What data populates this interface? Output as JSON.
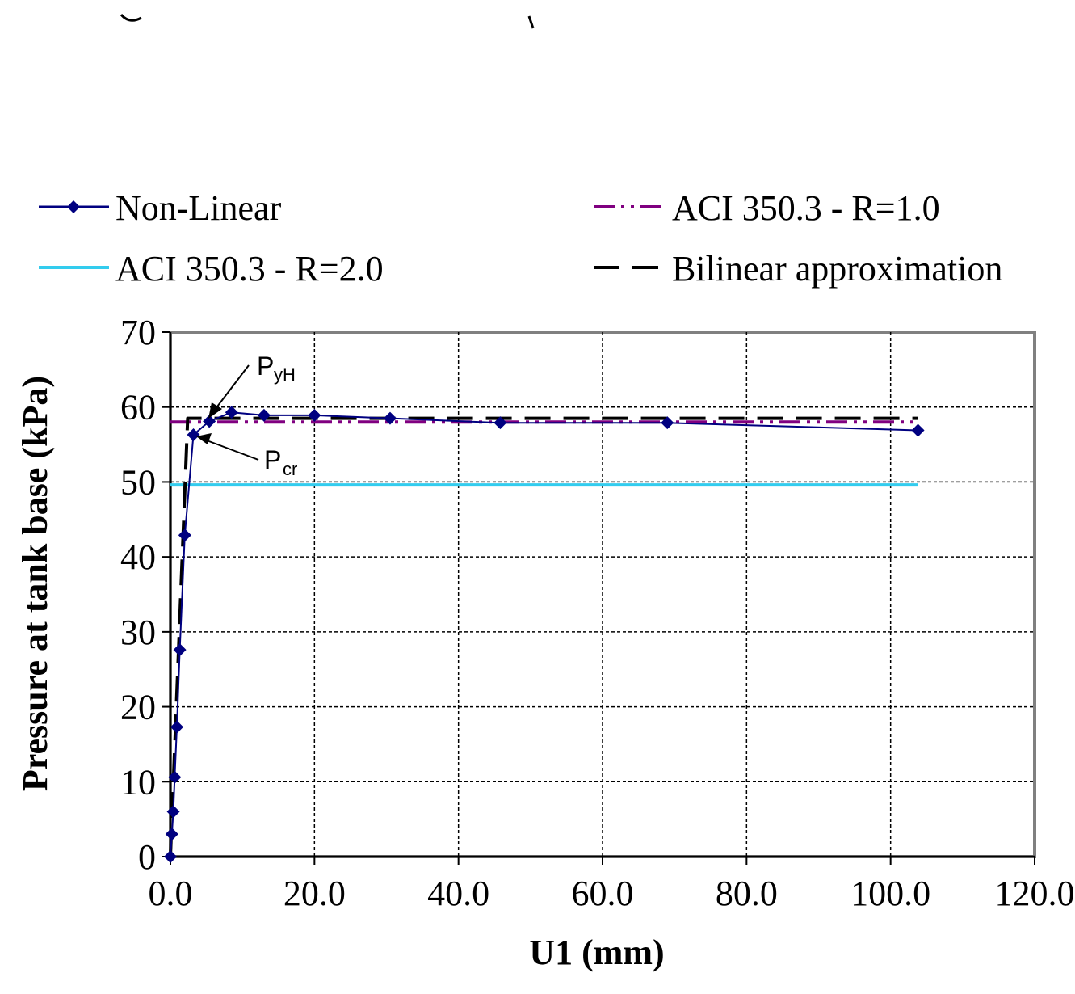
{
  "chart_data": {
    "type": "line",
    "xlabel": "U1  (mm)",
    "ylabel": "Pressure at tank base (kPa)",
    "xlim": [
      0,
      120
    ],
    "ylim": [
      0,
      70
    ],
    "x_ticks": [
      "0.0",
      "20.0",
      "40.0",
      "60.0",
      "80.0",
      "100.0",
      "120.0"
    ],
    "y_ticks": [
      "0",
      "10",
      "20",
      "30",
      "40",
      "50",
      "60",
      "70"
    ],
    "grid": true,
    "legend_placement": "top",
    "series": [
      {
        "name": "Non-Linear",
        "color": "#000080",
        "style": "solid-diamond",
        "x": [
          0.0,
          0.2,
          0.4,
          0.6,
          0.9,
          1.3,
          2.0,
          3.2,
          5.4,
          8.5,
          13.0,
          20.0,
          30.5,
          45.8,
          69.0,
          103.8
        ],
        "y": [
          0.0,
          3.0,
          6.0,
          10.6,
          17.3,
          27.6,
          42.9,
          56.3,
          58.1,
          59.3,
          58.9,
          58.9,
          58.5,
          57.9,
          57.9,
          56.9
        ]
      },
      {
        "name": "ACI 350.3 - R=1.0",
        "color": "#800080",
        "style": "dash-dot-dot",
        "x": [
          0.0,
          103.8
        ],
        "y": [
          58.0,
          58.0
        ]
      },
      {
        "name": "ACI 350.3 - R=2.0",
        "color": "#33CCEE",
        "style": "solid",
        "x": [
          0.0,
          103.8
        ],
        "y": [
          49.6,
          49.6
        ]
      },
      {
        "name": "Bilinear approximation",
        "color": "#000000",
        "style": "long-dash",
        "x": [
          0.0,
          2.4,
          103.8
        ],
        "y": [
          0.0,
          58.5,
          58.5
        ]
      }
    ],
    "annotations": [
      {
        "main": "P",
        "sub": "yH"
      },
      {
        "main": "P",
        "sub": "cr"
      }
    ]
  }
}
